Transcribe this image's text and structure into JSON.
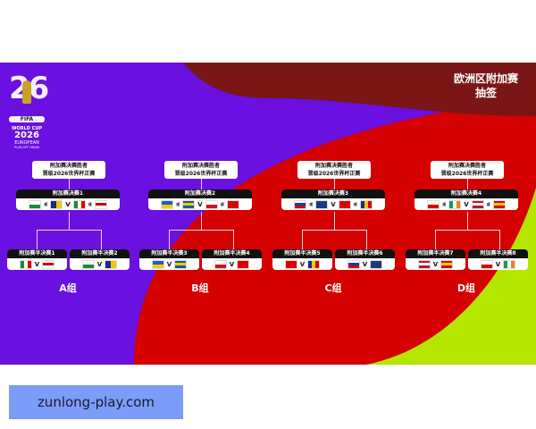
{
  "colors": {
    "purple": "#6a10e0",
    "red": "#d50000",
    "dark_red": "#7a1616",
    "lime": "#b4e600",
    "watermark_bg": "#7b9cf7"
  },
  "logo": {
    "number": "26",
    "fifa": "FIFA",
    "line1": "WORLD CUP",
    "line2": "2026",
    "line3": "EUROPEAN",
    "line4": "PLAY-OFF DRAW"
  },
  "title": {
    "line1": "欧洲区附加赛",
    "line2": "抽签"
  },
  "winner_text": {
    "line1": "附加赛决赛胜者",
    "line2": "晋级2026世界杯正赛"
  },
  "vs": "V",
  "or": "或",
  "groups": [
    {
      "label": "A组",
      "final": {
        "label": "附加赛决赛1",
        "flags": [
          "wales",
          "bosnia",
          "italy",
          "northern-ireland"
        ]
      },
      "semis": [
        {
          "label": "附加赛半决赛1",
          "flags": [
            "italy",
            "northern-ireland"
          ]
        },
        {
          "label": "附加赛半决赛2",
          "flags": [
            "wales",
            "bosnia"
          ]
        }
      ]
    },
    {
      "label": "B组",
      "final": {
        "label": "附加赛决赛2",
        "flags": [
          "ukraine",
          "sweden",
          "poland",
          "albania"
        ]
      },
      "semis": [
        {
          "label": "附加赛半决赛3",
          "flags": [
            "ukraine",
            "sweden"
          ]
        },
        {
          "label": "附加赛半决赛4",
          "flags": [
            "poland",
            "albania"
          ]
        }
      ]
    },
    {
      "label": "C组",
      "final": {
        "label": "附加赛决赛3",
        "flags": [
          "slovakia",
          "kosovo",
          "turkey",
          "romania"
        ]
      },
      "semis": [
        {
          "label": "附加赛半决赛5",
          "flags": [
            "turkey",
            "romania"
          ]
        },
        {
          "label": "附加赛半决赛6",
          "flags": [
            "slovakia",
            "kosovo"
          ]
        }
      ]
    },
    {
      "label": "D组",
      "final": {
        "label": "附加赛决赛4",
        "flags": [
          "czechia",
          "ireland",
          "denmark",
          "north-macedonia"
        ]
      },
      "semis": [
        {
          "label": "附加赛半决赛7",
          "flags": [
            "denmark",
            "north-macedonia"
          ]
        },
        {
          "label": "附加赛半决赛8",
          "flags": [
            "czechia",
            "ireland"
          ]
        }
      ]
    }
  ],
  "watermark": "zunlong-play.com"
}
